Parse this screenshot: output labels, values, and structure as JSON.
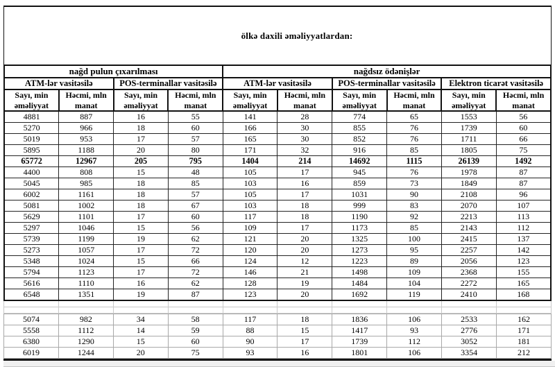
{
  "page": {
    "title": "ölkə daxili əməliyyatlardan:"
  },
  "table": {
    "groups": [
      {
        "label": "nağd pulun çıxarılması",
        "span": 4
      },
      {
        "label": "nağdsız ödənişlər",
        "span": 6
      }
    ],
    "subgroups": [
      {
        "label": "ATM-lər vasitəsilə",
        "span": 2
      },
      {
        "label": "POS-terminallar vasitəsilə",
        "span": 2
      },
      {
        "label": "ATM-lər vasitəsilə",
        "span": 2
      },
      {
        "label": "POS-terminallar vasitəsilə",
        "span": 2
      },
      {
        "label": "Elektron ticarət vasitəsilə",
        "span": 2
      }
    ],
    "column_headers": [
      "Sayı, min\nəməliyyat",
      "Həcmi, mln\nmanat",
      "Sayı, min\nəməliyyat",
      "Həcmi, mln\nmanat",
      "Sayı, min\nəməliyyat",
      "Həcmi, mln\nmanat",
      "Sayı, min\nəməliyyat",
      "Həcmi, mln\nmanat",
      "Sayı, min\nəməliyyat",
      "Həcmi, mln\nmanat"
    ],
    "rows": [
      [
        4881,
        887,
        16,
        55,
        141,
        28,
        774,
        65,
        1553,
        56
      ],
      [
        5270,
        966,
        18,
        60,
        166,
        30,
        855,
        76,
        1739,
        60
      ],
      [
        5019,
        953,
        17,
        57,
        165,
        30,
        852,
        76,
        1711,
        66
      ],
      [
        5895,
        1188,
        20,
        80,
        171,
        32,
        916,
        85,
        1805,
        75
      ],
      [
        65772,
        12967,
        205,
        795,
        1404,
        214,
        14692,
        1115,
        26139,
        1492
      ],
      [
        4400,
        808,
        15,
        48,
        105,
        17,
        945,
        76,
        1978,
        87
      ],
      [
        5045,
        985,
        18,
        85,
        103,
        16,
        859,
        73,
        1849,
        87
      ],
      [
        6002,
        1161,
        18,
        57,
        105,
        17,
        1031,
        90,
        2108,
        96
      ],
      [
        5081,
        1002,
        18,
        67,
        103,
        18,
        999,
        83,
        2070,
        107
      ],
      [
        5629,
        1101,
        17,
        60,
        117,
        18,
        1190,
        92,
        2213,
        113
      ],
      [
        5297,
        1046,
        15,
        56,
        109,
        17,
        1173,
        85,
        2143,
        112
      ],
      [
        5739,
        1199,
        19,
        62,
        121,
        20,
        1325,
        100,
        2415,
        137
      ],
      [
        5273,
        1057,
        17,
        72,
        120,
        20,
        1273,
        95,
        2257,
        142
      ],
      [
        5348,
        1024,
        15,
        66,
        124,
        12,
        1223,
        89,
        2056,
        123
      ],
      [
        5794,
        1123,
        17,
        72,
        146,
        21,
        1498,
        109,
        2368,
        155
      ],
      [
        5616,
        1110,
        16,
        62,
        128,
        19,
        1484,
        104,
        2272,
        165
      ],
      [
        6548,
        1351,
        19,
        87,
        123,
        20,
        1692,
        119,
        2410,
        168
      ]
    ],
    "bold_row_index": 4,
    "footer_rows": [
      [
        5074,
        982,
        34,
        58,
        117,
        18,
        1836,
        106,
        2533,
        162
      ],
      [
        5558,
        1112,
        14,
        59,
        88,
        15,
        1417,
        93,
        2776,
        171
      ],
      [
        6380,
        1290,
        15,
        60,
        90,
        17,
        1739,
        112,
        3052,
        181
      ],
      [
        6019,
        1244,
        20,
        75,
        93,
        16,
        1801,
        106,
        3354,
        212
      ]
    ]
  }
}
